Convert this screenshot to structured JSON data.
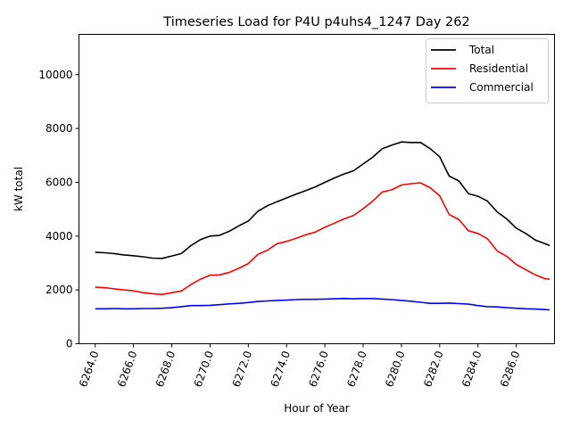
{
  "chart_data": {
    "type": "line",
    "title": "Timeseries Load for P4U p4uhs4_1247  Day 262",
    "xlabel": "Hour of Year",
    "ylabel": "kW total",
    "xlim": [
      6263.15,
      6288.0
    ],
    "ylim": [
      0,
      11500
    ],
    "x_ticks": [
      6264,
      6266,
      6268,
      6270,
      6272,
      6274,
      6276,
      6278,
      6280,
      6282,
      6284,
      6286
    ],
    "x_tick_labels": [
      "6264.0",
      "6266.0",
      "6268.0",
      "6270.0",
      "6272.0",
      "6274.0",
      "6276.0",
      "6278.0",
      "6280.0",
      "6282.0",
      "6284.0",
      "6286.0"
    ],
    "y_ticks": [
      0,
      2000,
      4000,
      6000,
      8000,
      10000
    ],
    "y_tick_labels": [
      "0",
      "2000",
      "4000",
      "6000",
      "8000",
      "10000"
    ],
    "legend_position": "top-right",
    "grid": false,
    "series": [
      {
        "name": "Total",
        "color": "#000000",
        "x": [
          6264,
          6264.5,
          6265,
          6265.5,
          6266,
          6266.5,
          6267,
          6267.5,
          6268,
          6268.5,
          6269,
          6269.5,
          6270,
          6270.5,
          6271,
          6271.5,
          6272,
          6272.5,
          6273,
          6273.5,
          6274,
          6274.5,
          6275,
          6275.5,
          6276,
          6276.5,
          6277,
          6277.5,
          6278,
          6278.5,
          6279,
          6279.5,
          6280,
          6280.5,
          6281,
          6281.5,
          6282,
          6282.5,
          6283,
          6283.5,
          6284,
          6284.5,
          6285,
          6285.5,
          6286,
          6286.5,
          6287,
          6287.5,
          6287.75
        ],
        "values": [
          3400,
          3380,
          3350,
          3300,
          3270,
          3230,
          3180,
          3170,
          3260,
          3350,
          3650,
          3870,
          4000,
          4030,
          4180,
          4380,
          4560,
          4920,
          5130,
          5280,
          5420,
          5560,
          5690,
          5830,
          6000,
          6160,
          6310,
          6430,
          6680,
          6930,
          7250,
          7380,
          7500,
          7480,
          7480,
          7250,
          6950,
          6230,
          6050,
          5580,
          5480,
          5300,
          4900,
          4640,
          4300,
          4100,
          3850,
          3720,
          3650
        ]
      },
      {
        "name": "Residential",
        "color": "#ff0000",
        "x": [
          6264,
          6264.5,
          6265,
          6265.5,
          6266,
          6266.5,
          6267,
          6267.5,
          6268,
          6268.5,
          6269,
          6269.5,
          6270,
          6270.5,
          6271,
          6271.5,
          6272,
          6272.5,
          6273,
          6273.5,
          6274,
          6274.5,
          6275,
          6275.5,
          6276,
          6276.5,
          6277,
          6277.5,
          6278,
          6278.5,
          6279,
          6279.5,
          6280,
          6280.5,
          6281,
          6281.5,
          6282,
          6282.5,
          6283,
          6283.5,
          6284,
          6284.5,
          6285,
          6285.5,
          6286,
          6286.5,
          6287,
          6287.5,
          6287.75
        ],
        "values": [
          2100,
          2080,
          2040,
          2000,
          1970,
          1900,
          1860,
          1830,
          1900,
          1960,
          2200,
          2400,
          2550,
          2560,
          2650,
          2800,
          2980,
          3320,
          3480,
          3720,
          3800,
          3920,
          4050,
          4150,
          4330,
          4480,
          4640,
          4770,
          5020,
          5300,
          5640,
          5720,
          5900,
          5950,
          5980,
          5800,
          5500,
          4800,
          4620,
          4200,
          4100,
          3900,
          3450,
          3250,
          2950,
          2750,
          2560,
          2420,
          2400
        ]
      },
      {
        "name": "Commercial",
        "color": "#0000ff",
        "x": [
          6264,
          6264.5,
          6265,
          6265.5,
          6266,
          6266.5,
          6267,
          6267.5,
          6268,
          6268.5,
          6269,
          6269.5,
          6270,
          6270.5,
          6271,
          6271.5,
          6272,
          6272.5,
          6273,
          6273.5,
          6274,
          6274.5,
          6275,
          6275.5,
          6276,
          6276.5,
          6277,
          6277.5,
          6278,
          6278.5,
          6279,
          6279.5,
          6280,
          6280.5,
          6281,
          6281.5,
          6282,
          6282.5,
          6283,
          6283.5,
          6284,
          6284.5,
          6285,
          6285.5,
          6286,
          6286.5,
          6287,
          6287.5,
          6287.75
        ],
        "values": [
          1300,
          1300,
          1310,
          1300,
          1300,
          1310,
          1310,
          1320,
          1340,
          1380,
          1420,
          1420,
          1430,
          1450,
          1480,
          1500,
          1530,
          1570,
          1590,
          1610,
          1620,
          1640,
          1650,
          1650,
          1660,
          1670,
          1680,
          1670,
          1680,
          1680,
          1660,
          1640,
          1610,
          1580,
          1540,
          1500,
          1500,
          1510,
          1490,
          1470,
          1420,
          1380,
          1370,
          1340,
          1320,
          1300,
          1290,
          1270,
          1260
        ]
      }
    ]
  }
}
